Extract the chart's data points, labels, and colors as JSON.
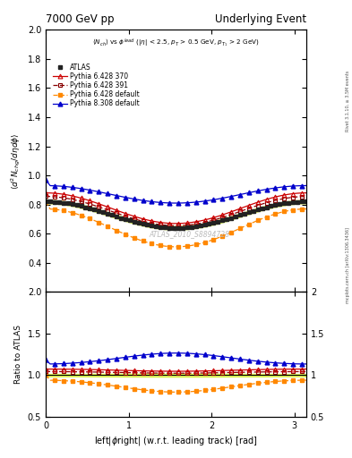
{
  "title_left": "7000 GeV pp",
  "title_right": "Underlying Event",
  "subtitle_text": "$\\langle N_{ch}\\rangle$ vs $\\phi^{lead}$ ($|\\eta|$ < 2.5, $p_T$ > 0.5 GeV, $p_{T_1}$ > 2 GeV)",
  "ylabel_main": "$\\langle d^2 N_{chg}/d\\eta d\\phi \\rangle$",
  "ylabel_ratio": "Ratio to ATLAS",
  "xlabel": "left|$\\phi$right| (w.r.t. leading track) [rad]",
  "watermark": "ATLAS_2010_S8894728",
  "right_label": "mcplots.cern.ch [arXiv:1306.3436]",
  "right_label2": "Rivet 3.1.10, ≥ 3.5M events",
  "xlim": [
    0,
    3.14159
  ],
  "ylim_main": [
    0.2,
    2.0
  ],
  "ylim_ratio": [
    0.5,
    2.0
  ],
  "yticks_main": [
    0.4,
    0.6,
    0.8,
    1.0,
    1.2,
    1.4,
    1.6,
    1.8,
    2.0
  ],
  "yticks_ratio": [
    0.5,
    1.0,
    1.5,
    2.0
  ],
  "legend_entries": [
    "ATLAS",
    "Pythia 6.428 370",
    "Pythia 6.428 391",
    "Pythia 6.428 default",
    "Pythia 8.308 default"
  ],
  "colors": {
    "atlas": "#222222",
    "p6_370": "#cc0000",
    "p6_391": "#880000",
    "p6_default": "#ff8800",
    "p8_default": "#0000cc"
  },
  "atlas_band_color": "#ccee00",
  "atlas_band_alpha": 0.55,
  "n_points": 60
}
